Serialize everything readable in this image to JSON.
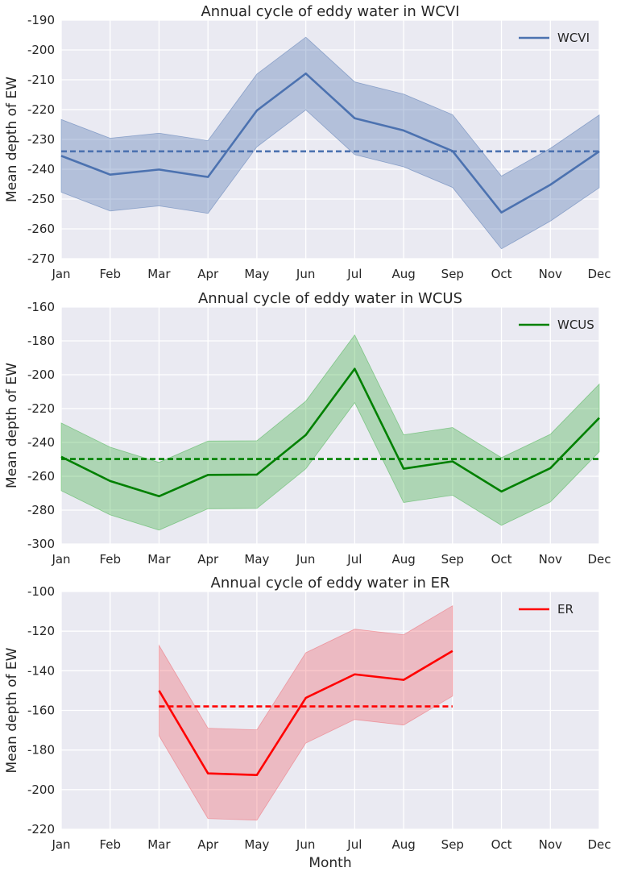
{
  "chart_data": [
    {
      "type": "line",
      "title": "Annual cycle of eddy water in WCVI",
      "xlabel": "",
      "ylabel": "Mean depth of EW",
      "categories": [
        "Jan",
        "Feb",
        "Mar",
        "Apr",
        "May",
        "Jun",
        "Jul",
        "Aug",
        "Sep",
        "Oct",
        "Nov",
        "Dec"
      ],
      "ylim": [
        -270,
        -190
      ],
      "yticks": [
        -190,
        -200,
        -210,
        -220,
        -230,
        -240,
        -250,
        -260,
        -270
      ],
      "color": "#4c72b0",
      "band_color": "#4c72b0",
      "legend_position": "top-right",
      "series": [
        {
          "name": "WCVI",
          "values": [
            -235.5,
            -241.8,
            -240.1,
            -242.6,
            -220.3,
            -207.9,
            -222.9,
            -227.0,
            -233.9,
            -254.5,
            -245.2,
            -234.0
          ],
          "upper": [
            -223.3,
            -229.6,
            -227.9,
            -230.4,
            -208.1,
            -195.7,
            -210.7,
            -214.8,
            -221.7,
            -242.3,
            -233.0,
            -221.8
          ],
          "lower": [
            -247.7,
            -254.0,
            -252.3,
            -254.8,
            -232.5,
            -220.1,
            -235.1,
            -239.2,
            -246.1,
            -266.7,
            -257.4,
            -246.2
          ]
        }
      ],
      "mean_line": -234.0
    },
    {
      "type": "line",
      "title": "Annual cycle of eddy water in WCUS",
      "xlabel": "",
      "ylabel": "Mean depth of EW",
      "categories": [
        "Jan",
        "Feb",
        "Mar",
        "Apr",
        "May",
        "Jun",
        "Jul",
        "Aug",
        "Sep",
        "Oct",
        "Nov",
        "Dec"
      ],
      "ylim": [
        -300,
        -160
      ],
      "yticks": [
        -160,
        -180,
        -200,
        -220,
        -240,
        -260,
        -280,
        -300
      ],
      "color": "#008000",
      "band_color": "#3cb043",
      "legend_position": "top-right",
      "series": [
        {
          "name": "WCUS",
          "values": [
            -248.5,
            -262.8,
            -271.8,
            -259.2,
            -259.0,
            -235.6,
            -196.5,
            -255.5,
            -251.2,
            -269.0,
            -255.2,
            -225.5
          ],
          "upper": [
            -228.5,
            -242.8,
            -251.8,
            -239.2,
            -239.0,
            -215.6,
            -176.5,
            -235.5,
            -231.2,
            -249.0,
            -235.2,
            -205.5
          ],
          "lower": [
            -268.5,
            -282.8,
            -291.8,
            -279.2,
            -279.0,
            -255.6,
            -216.5,
            -275.5,
            -271.2,
            -289.0,
            -275.2,
            -245.5
          ]
        }
      ],
      "mean_line": -249.8
    },
    {
      "type": "line",
      "title": "Annual cycle of eddy water in ER",
      "xlabel": "Month",
      "ylabel": "Mean depth of EW",
      "categories": [
        "Jan",
        "Feb",
        "Mar",
        "Apr",
        "May",
        "Jun",
        "Jul",
        "Aug",
        "Sep",
        "Oct",
        "Nov",
        "Dec"
      ],
      "ylim": [
        -220,
        -100
      ],
      "yticks": [
        -100,
        -120,
        -140,
        -160,
        -180,
        -200,
        -220
      ],
      "color": "#ff0000",
      "band_color": "#f0606a",
      "legend_position": "top-right",
      "series": [
        {
          "name": "ER",
          "values": [
            null,
            null,
            -150.0,
            -191.8,
            -192.6,
            -153.7,
            -141.8,
            -144.6,
            -130.0,
            null,
            null,
            null
          ],
          "upper": [
            null,
            null,
            -127.2,
            -169.0,
            -169.8,
            -130.9,
            -119.0,
            -121.8,
            -107.2,
            null,
            null,
            null
          ],
          "lower": [
            null,
            null,
            -172.8,
            -214.6,
            -215.4,
            -176.5,
            -164.6,
            -167.4,
            -152.8,
            null,
            null,
            null
          ]
        }
      ],
      "mean_line": -158.0,
      "mean_line_range": [
        "Mar",
        "Sep"
      ]
    }
  ]
}
